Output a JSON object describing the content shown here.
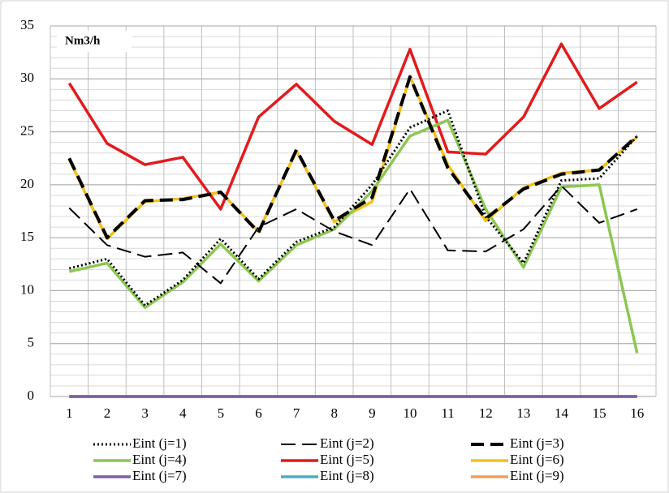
{
  "chart_data": {
    "type": "line",
    "annotation": "Nm3/h",
    "categories": [
      "1",
      "2",
      "3",
      "4",
      "5",
      "6",
      "7",
      "8",
      "9",
      "10",
      "11",
      "12",
      "13",
      "14",
      "15",
      "16"
    ],
    "ylim": [
      0,
      35
    ],
    "yticks": [
      0,
      5,
      10,
      15,
      20,
      25,
      30,
      35
    ],
    "grid": true,
    "minor_grid_step": 1,
    "legend": "bottom",
    "series": [
      {
        "name": "Eint (j=1)",
        "color": "#000000",
        "style": "dotted",
        "values": [
          12.1,
          13.0,
          8.6,
          11.0,
          14.9,
          11.1,
          14.6,
          16.0,
          20.0,
          25.4,
          27.0,
          17.0,
          12.6,
          20.4,
          20.6,
          24.6
        ]
      },
      {
        "name": "Eint (j=2)",
        "color": "#000000",
        "style": "dashed",
        "values": [
          17.8,
          14.3,
          13.2,
          13.6,
          10.7,
          16.0,
          17.7,
          15.6,
          14.3,
          19.6,
          13.8,
          13.7,
          15.8,
          19.9,
          16.4,
          17.7
        ]
      },
      {
        "name": "Eint (j=3)",
        "color": "#000000",
        "style": "dashed-thick",
        "values": [
          22.5,
          15.0,
          18.5,
          18.6,
          19.3,
          15.5,
          23.3,
          16.6,
          18.8,
          30.2,
          21.6,
          16.8,
          19.6,
          21.0,
          21.4,
          24.6
        ]
      },
      {
        "name": "Eint (j=4)",
        "color": "#8cc751",
        "style": "solid",
        "values": [
          11.8,
          12.6,
          8.4,
          10.8,
          14.4,
          10.9,
          14.3,
          15.8,
          19.4,
          24.6,
          26.1,
          17.7,
          12.2,
          19.8,
          20.0,
          4.1
        ]
      },
      {
        "name": "Eint (j=5)",
        "color": "#e31a1c",
        "style": "solid",
        "values": [
          29.6,
          23.9,
          21.9,
          22.6,
          17.7,
          26.4,
          29.5,
          26.0,
          23.8,
          32.8,
          23.1,
          22.9,
          26.4,
          33.3,
          27.2,
          29.7
        ]
      },
      {
        "name": "Eint (j=6)",
        "color": "#f5c018",
        "style": "solid",
        "values": [
          22.4,
          14.9,
          18.4,
          18.7,
          19.3,
          15.6,
          23.2,
          16.5,
          18.4,
          30.2,
          21.9,
          16.6,
          19.7,
          21.1,
          21.4,
          24.5
        ]
      },
      {
        "name": "Eint (j=7)",
        "color": "#7e5fa4",
        "style": "solid",
        "values": [
          0,
          0,
          0,
          0,
          0,
          0,
          0,
          0,
          0,
          0,
          0,
          0,
          0,
          0,
          0,
          0
        ]
      },
      {
        "name": "Eint (j=8)",
        "color": "#4aaec4",
        "style": "solid",
        "values": [
          0,
          0,
          0,
          0,
          0,
          0,
          0,
          0,
          0,
          0,
          0,
          0,
          0,
          0,
          0,
          0
        ]
      },
      {
        "name": "Eint (j=9)",
        "color": "#f0a05a",
        "style": "solid",
        "values": [
          0,
          0,
          0,
          0,
          0,
          0,
          0,
          0,
          0,
          0,
          0,
          0,
          0,
          0,
          0,
          0
        ]
      }
    ]
  }
}
